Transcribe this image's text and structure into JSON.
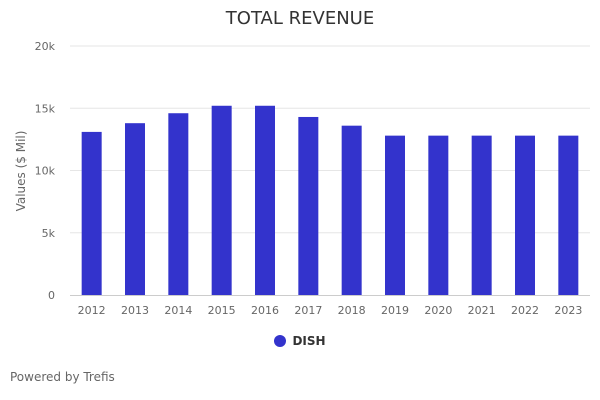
{
  "chart_data": {
    "type": "bar",
    "title": "TOTAL REVENUE",
    "ylabel": "Values ($ Mil)",
    "xlabel": "",
    "categories": [
      "2012",
      "2013",
      "2014",
      "2015",
      "2016",
      "2017",
      "2018",
      "2019",
      "2020",
      "2021",
      "2022",
      "2023"
    ],
    "series": [
      {
        "name": "DISH",
        "values": [
          13100,
          13800,
          14600,
          15200,
          15200,
          14300,
          13600,
          12800,
          12800,
          12800,
          12800,
          12800
        ],
        "color": "#3333cc"
      }
    ],
    "ylim": [
      0,
      20000
    ],
    "yticks": [
      {
        "value": 0,
        "label": "0"
      },
      {
        "value": 5000,
        "label": "5k"
      },
      {
        "value": 10000,
        "label": "10k"
      },
      {
        "value": 15000,
        "label": "15k"
      },
      {
        "value": 20000,
        "label": "20k"
      }
    ],
    "grid": true,
    "legend_position": "bottom-center"
  },
  "credits": "Powered by Trefis"
}
